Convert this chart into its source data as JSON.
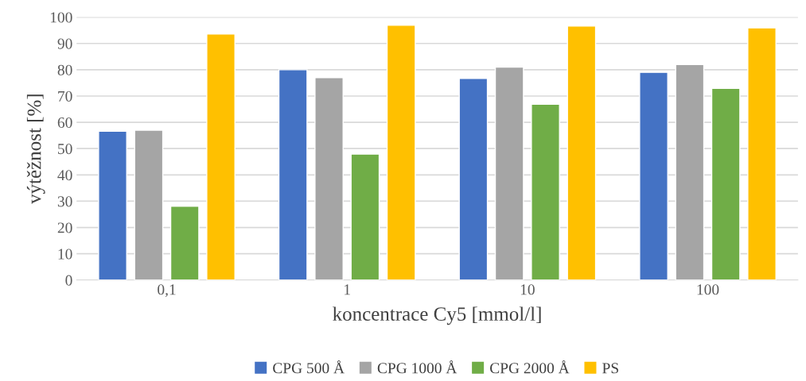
{
  "chart_data": {
    "type": "bar",
    "xlabel": "koncentrace Cy5 [mmol/l]",
    "ylabel": "výtěžnost [%]",
    "categories": [
      "0,1",
      "1",
      "10",
      "100"
    ],
    "series": [
      {
        "name": "CPG 500 Å",
        "color": "#4472c4",
        "values": [
          56.6,
          80,
          76.7,
          79
        ]
      },
      {
        "name": "CPG 1000 Å",
        "color": "#a5a5a5",
        "values": [
          57,
          77,
          81,
          82
        ]
      },
      {
        "name": "CPG 2000 Å",
        "color": "#70ad47",
        "values": [
          28.1,
          47.9,
          66.9,
          72.9
        ]
      },
      {
        "name": "PS",
        "color": "#ffc000",
        "values": [
          93.6,
          96.9,
          96.6,
          95.9
        ]
      }
    ],
    "ylim": [
      0,
      100
    ],
    "yticks": [
      0,
      10,
      20,
      30,
      40,
      50,
      60,
      70,
      80,
      90,
      100
    ],
    "grid": "y",
    "legend": "bottom"
  }
}
